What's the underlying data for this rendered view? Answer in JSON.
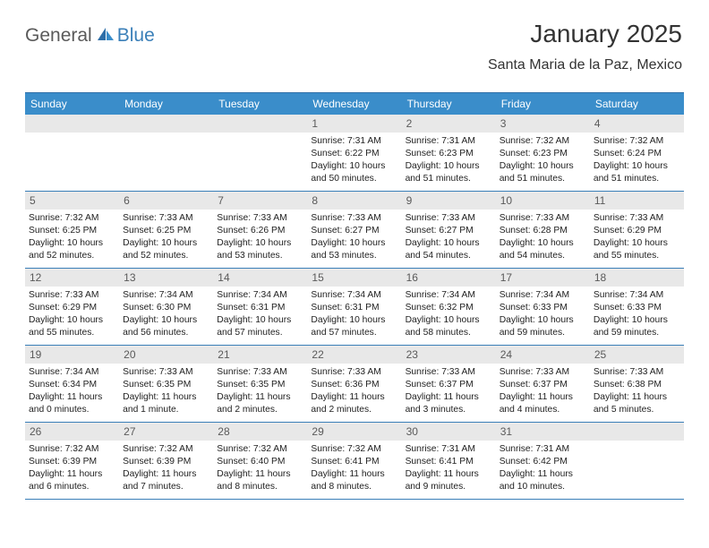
{
  "logo": {
    "text1": "General",
    "text2": "Blue"
  },
  "header": {
    "month_title": "January 2025",
    "location": "Santa Maria de la Paz, Mexico"
  },
  "colors": {
    "header_bg": "#3a8dca",
    "header_text": "#ffffff",
    "border": "#3a7fb8",
    "date_bg": "#e8e8e8",
    "date_text": "#5a5a5a",
    "body_text": "#222222",
    "logo_gray": "#5a5a5a",
    "logo_blue": "#3a7fb8"
  },
  "day_names": [
    "Sunday",
    "Monday",
    "Tuesday",
    "Wednesday",
    "Thursday",
    "Friday",
    "Saturday"
  ],
  "weeks": [
    [
      {
        "date": "",
        "lines": []
      },
      {
        "date": "",
        "lines": []
      },
      {
        "date": "",
        "lines": []
      },
      {
        "date": "1",
        "lines": [
          "Sunrise: 7:31 AM",
          "Sunset: 6:22 PM",
          "Daylight: 10 hours",
          "and 50 minutes."
        ]
      },
      {
        "date": "2",
        "lines": [
          "Sunrise: 7:31 AM",
          "Sunset: 6:23 PM",
          "Daylight: 10 hours",
          "and 51 minutes."
        ]
      },
      {
        "date": "3",
        "lines": [
          "Sunrise: 7:32 AM",
          "Sunset: 6:23 PM",
          "Daylight: 10 hours",
          "and 51 minutes."
        ]
      },
      {
        "date": "4",
        "lines": [
          "Sunrise: 7:32 AM",
          "Sunset: 6:24 PM",
          "Daylight: 10 hours",
          "and 51 minutes."
        ]
      }
    ],
    [
      {
        "date": "5",
        "lines": [
          "Sunrise: 7:32 AM",
          "Sunset: 6:25 PM",
          "Daylight: 10 hours",
          "and 52 minutes."
        ]
      },
      {
        "date": "6",
        "lines": [
          "Sunrise: 7:33 AM",
          "Sunset: 6:25 PM",
          "Daylight: 10 hours",
          "and 52 minutes."
        ]
      },
      {
        "date": "7",
        "lines": [
          "Sunrise: 7:33 AM",
          "Sunset: 6:26 PM",
          "Daylight: 10 hours",
          "and 53 minutes."
        ]
      },
      {
        "date": "8",
        "lines": [
          "Sunrise: 7:33 AM",
          "Sunset: 6:27 PM",
          "Daylight: 10 hours",
          "and 53 minutes."
        ]
      },
      {
        "date": "9",
        "lines": [
          "Sunrise: 7:33 AM",
          "Sunset: 6:27 PM",
          "Daylight: 10 hours",
          "and 54 minutes."
        ]
      },
      {
        "date": "10",
        "lines": [
          "Sunrise: 7:33 AM",
          "Sunset: 6:28 PM",
          "Daylight: 10 hours",
          "and 54 minutes."
        ]
      },
      {
        "date": "11",
        "lines": [
          "Sunrise: 7:33 AM",
          "Sunset: 6:29 PM",
          "Daylight: 10 hours",
          "and 55 minutes."
        ]
      }
    ],
    [
      {
        "date": "12",
        "lines": [
          "Sunrise: 7:33 AM",
          "Sunset: 6:29 PM",
          "Daylight: 10 hours",
          "and 55 minutes."
        ]
      },
      {
        "date": "13",
        "lines": [
          "Sunrise: 7:34 AM",
          "Sunset: 6:30 PM",
          "Daylight: 10 hours",
          "and 56 minutes."
        ]
      },
      {
        "date": "14",
        "lines": [
          "Sunrise: 7:34 AM",
          "Sunset: 6:31 PM",
          "Daylight: 10 hours",
          "and 57 minutes."
        ]
      },
      {
        "date": "15",
        "lines": [
          "Sunrise: 7:34 AM",
          "Sunset: 6:31 PM",
          "Daylight: 10 hours",
          "and 57 minutes."
        ]
      },
      {
        "date": "16",
        "lines": [
          "Sunrise: 7:34 AM",
          "Sunset: 6:32 PM",
          "Daylight: 10 hours",
          "and 58 minutes."
        ]
      },
      {
        "date": "17",
        "lines": [
          "Sunrise: 7:34 AM",
          "Sunset: 6:33 PM",
          "Daylight: 10 hours",
          "and 59 minutes."
        ]
      },
      {
        "date": "18",
        "lines": [
          "Sunrise: 7:34 AM",
          "Sunset: 6:33 PM",
          "Daylight: 10 hours",
          "and 59 minutes."
        ]
      }
    ],
    [
      {
        "date": "19",
        "lines": [
          "Sunrise: 7:34 AM",
          "Sunset: 6:34 PM",
          "Daylight: 11 hours",
          "and 0 minutes."
        ]
      },
      {
        "date": "20",
        "lines": [
          "Sunrise: 7:33 AM",
          "Sunset: 6:35 PM",
          "Daylight: 11 hours",
          "and 1 minute."
        ]
      },
      {
        "date": "21",
        "lines": [
          "Sunrise: 7:33 AM",
          "Sunset: 6:35 PM",
          "Daylight: 11 hours",
          "and 2 minutes."
        ]
      },
      {
        "date": "22",
        "lines": [
          "Sunrise: 7:33 AM",
          "Sunset: 6:36 PM",
          "Daylight: 11 hours",
          "and 2 minutes."
        ]
      },
      {
        "date": "23",
        "lines": [
          "Sunrise: 7:33 AM",
          "Sunset: 6:37 PM",
          "Daylight: 11 hours",
          "and 3 minutes."
        ]
      },
      {
        "date": "24",
        "lines": [
          "Sunrise: 7:33 AM",
          "Sunset: 6:37 PM",
          "Daylight: 11 hours",
          "and 4 minutes."
        ]
      },
      {
        "date": "25",
        "lines": [
          "Sunrise: 7:33 AM",
          "Sunset: 6:38 PM",
          "Daylight: 11 hours",
          "and 5 minutes."
        ]
      }
    ],
    [
      {
        "date": "26",
        "lines": [
          "Sunrise: 7:32 AM",
          "Sunset: 6:39 PM",
          "Daylight: 11 hours",
          "and 6 minutes."
        ]
      },
      {
        "date": "27",
        "lines": [
          "Sunrise: 7:32 AM",
          "Sunset: 6:39 PM",
          "Daylight: 11 hours",
          "and 7 minutes."
        ]
      },
      {
        "date": "28",
        "lines": [
          "Sunrise: 7:32 AM",
          "Sunset: 6:40 PM",
          "Daylight: 11 hours",
          "and 8 minutes."
        ]
      },
      {
        "date": "29",
        "lines": [
          "Sunrise: 7:32 AM",
          "Sunset: 6:41 PM",
          "Daylight: 11 hours",
          "and 8 minutes."
        ]
      },
      {
        "date": "30",
        "lines": [
          "Sunrise: 7:31 AM",
          "Sunset: 6:41 PM",
          "Daylight: 11 hours",
          "and 9 minutes."
        ]
      },
      {
        "date": "31",
        "lines": [
          "Sunrise: 7:31 AM",
          "Sunset: 6:42 PM",
          "Daylight: 11 hours",
          "and 10 minutes."
        ]
      },
      {
        "date": "",
        "lines": []
      }
    ]
  ]
}
